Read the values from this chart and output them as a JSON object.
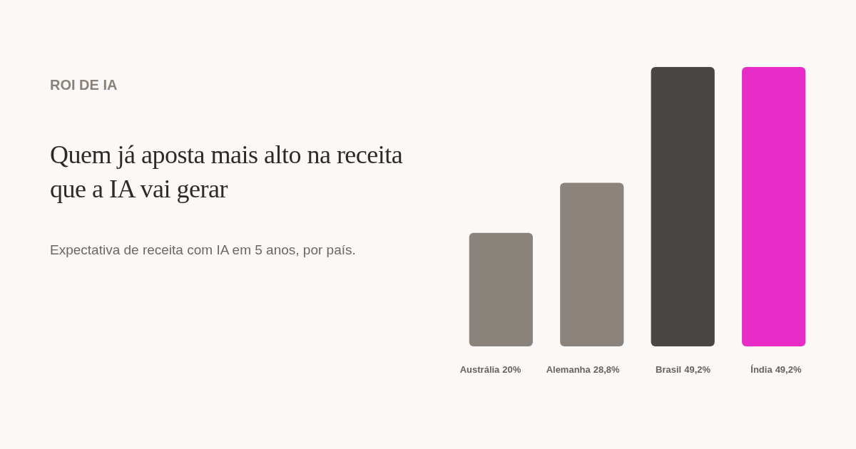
{
  "chart_data": {
    "type": "bar",
    "title": "Quem já aposta mais alto na receita que a IA vai gerar",
    "subtitle": "Expectativa de receita com IA em 5 anos, por país.",
    "annotations": [
      "ROI DE IA"
    ],
    "categories": [
      "Austrália",
      "Alemanha",
      "Brasil",
      "Índia"
    ],
    "values": [
      20,
      28.8,
      49.2,
      49.2
    ],
    "value_labels": [
      "20%",
      "28,8%",
      "49,2%",
      "49,2%"
    ],
    "colors": [
      "#8a837c",
      "#8c837d",
      "#4a4643",
      "#e82cc8"
    ]
  }
}
